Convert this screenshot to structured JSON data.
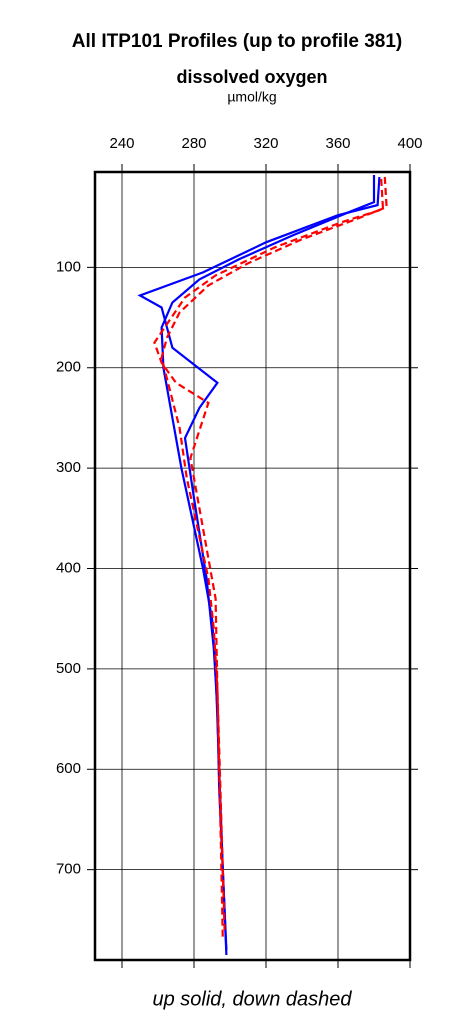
{
  "chart_data": {
    "type": "line",
    "title": "All ITP101 Profiles (up to profile 381)",
    "subtitle": "dissolved oxygen",
    "x_unit": "µmol/kg",
    "xlabel": "up solid, down dashed",
    "xlim": [
      225,
      400
    ],
    "xticks": [
      240,
      280,
      320,
      360,
      400
    ],
    "ylim": [
      5,
      790
    ],
    "yticks": [
      100,
      200,
      300,
      400,
      500,
      600,
      700
    ],
    "y_inverted": true,
    "grid": true,
    "series": [
      {
        "color": "#0000ff",
        "dash": false,
        "x": [
          380,
          380,
          366,
          335,
          305,
          283,
          268,
          262,
          263,
          268,
          273,
          279,
          285,
          290,
          292,
          293,
          294,
          295,
          296,
          298
        ],
        "y": [
          8,
          35,
          45,
          68,
          92,
          112,
          135,
          160,
          200,
          250,
          300,
          350,
          400,
          450,
          500,
          550,
          600,
          650,
          700,
          785
        ]
      },
      {
        "color": "#0000ff",
        "dash": false,
        "x": [
          383,
          382,
          360,
          320,
          285,
          250,
          262,
          268,
          293,
          283,
          275,
          280,
          287,
          291,
          293,
          294,
          296,
          298
        ],
        "y": [
          10,
          38,
          48,
          75,
          105,
          128,
          140,
          180,
          215,
          240,
          270,
          330,
          410,
          480,
          540,
          620,
          700,
          780
        ]
      },
      {
        "color": "#ff0000",
        "dash": true,
        "x": [
          386,
          387,
          370,
          340,
          310,
          288,
          272,
          265,
          262,
          272,
          276,
          282,
          288,
          291,
          293,
          294,
          295,
          296
        ],
        "y": [
          10,
          40,
          52,
          72,
          96,
          118,
          145,
          170,
          190,
          260,
          310,
          360,
          410,
          460,
          520,
          600,
          680,
          770
        ]
      },
      {
        "color": "#ff0000",
        "dash": true,
        "x": [
          384,
          385,
          362,
          325,
          292,
          275,
          258,
          262,
          270,
          288,
          278,
          284,
          292,
          293,
          295,
          297
        ],
        "y": [
          12,
          42,
          55,
          80,
          108,
          130,
          175,
          195,
          215,
          235,
          290,
          350,
          430,
          520,
          640,
          760
        ]
      }
    ]
  }
}
